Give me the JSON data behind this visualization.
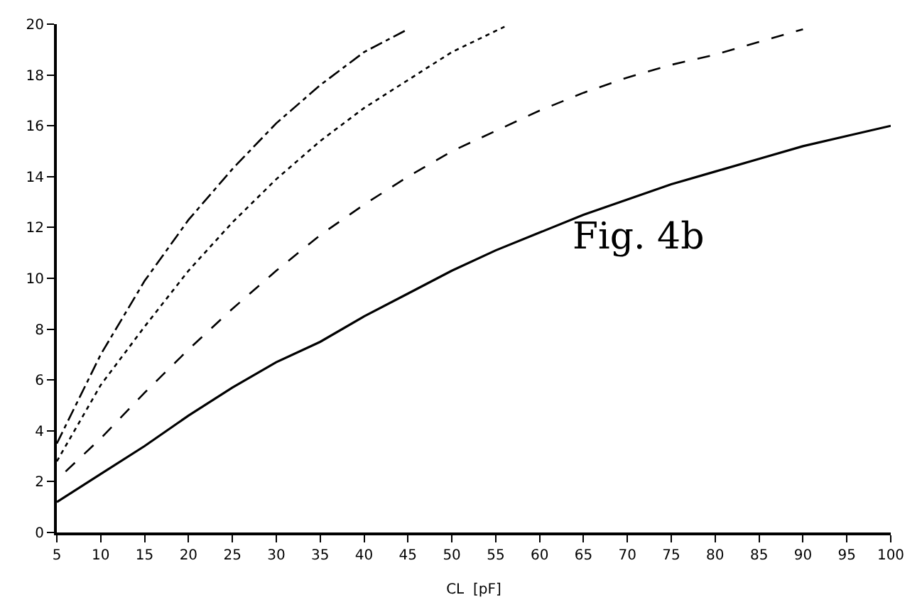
{
  "chart_data": {
    "type": "line",
    "xlabel": "CL  [pF]",
    "annotations": [
      "Fig. 4b"
    ],
    "xlim": [
      5,
      100
    ],
    "xticks": [
      5,
      10,
      15,
      20,
      25,
      30,
      35,
      40,
      45,
      50,
      55,
      60,
      65,
      70,
      75,
      80,
      85,
      90,
      95,
      100
    ],
    "ylim": [
      0,
      20
    ],
    "yticks": [
      0,
      2,
      4,
      6,
      8,
      10,
      12,
      14,
      16,
      18,
      20
    ],
    "marker": "none",
    "series": [
      {
        "color": "#000000",
        "line_style": "solid",
        "x": [
          5,
          10,
          15,
          20,
          25,
          30,
          35,
          40,
          45,
          50,
          55,
          60,
          65,
          70,
          75,
          80,
          85,
          90,
          95,
          100
        ],
        "values": [
          1.2,
          2.3,
          3.4,
          4.6,
          5.7,
          6.7,
          7.5,
          8.5,
          9.4,
          10.3,
          11.1,
          11.8,
          12.5,
          13.1,
          13.7,
          14.2,
          14.7,
          15.2,
          15.6,
          16.0
        ]
      },
      {
        "color": "#000000",
        "line_style": "dashed",
        "x": [
          6,
          10,
          15,
          20,
          25,
          30,
          35,
          40,
          45,
          50,
          55,
          60,
          65,
          70,
          75,
          80,
          85,
          90
        ],
        "values": [
          2.4,
          3.7,
          5.5,
          7.2,
          8.8,
          10.3,
          11.7,
          12.9,
          14.0,
          15.0,
          15.8,
          16.6,
          17.3,
          17.9,
          18.4,
          18.8,
          19.3,
          19.8
        ]
      },
      {
        "color": "#000000",
        "line_style": "dotted",
        "x": [
          5,
          10,
          15,
          20,
          25,
          30,
          35,
          40,
          45,
          50,
          56
        ],
        "values": [
          2.8,
          5.8,
          8.1,
          10.3,
          12.2,
          13.9,
          15.4,
          16.7,
          17.8,
          18.9,
          19.9
        ]
      },
      {
        "color": "#000000",
        "line_style": "dashdot",
        "x": [
          5,
          10,
          15,
          20,
          25,
          30,
          35,
          40,
          45
        ],
        "values": [
          3.5,
          7.0,
          9.9,
          12.3,
          14.3,
          16.1,
          17.6,
          18.9,
          19.8
        ]
      }
    ]
  }
}
